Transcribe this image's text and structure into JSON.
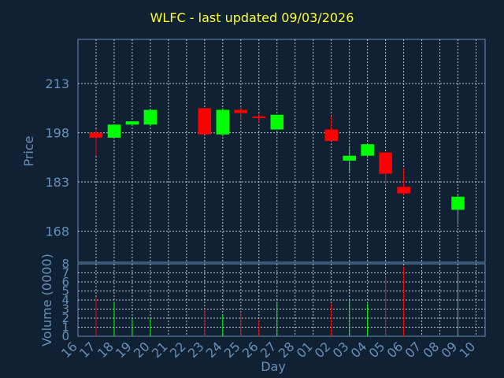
{
  "title": "WLFC - last updated 09/03/2026",
  "chart_data": {
    "type": "candlestick",
    "title": "WLFC - last updated 09/03/2026",
    "xlabel": "Day",
    "ylabel": "Price",
    "volume_label": "Volume (0000)",
    "x_ticks": [
      "16",
      "17",
      "18",
      "19",
      "20",
      "21",
      "22",
      "23",
      "24",
      "25",
      "26",
      "27",
      "28",
      "01",
      "02",
      "03",
      "04",
      "05",
      "06",
      "07",
      "08",
      "09",
      "10"
    ],
    "price_ticks": [
      168,
      183,
      198,
      213
    ],
    "price_range": [
      158.5,
      226.5
    ],
    "volume_ticks": [
      0,
      1,
      2,
      3,
      4,
      5,
      6,
      7,
      8
    ],
    "volume_range": [
      0,
      8
    ],
    "up_color": "#00ff00",
    "down_color": "#ff0000",
    "grid": true,
    "candles": [
      {
        "day": "17",
        "open": 198,
        "close": 196.5,
        "high": 199,
        "low": 191,
        "volume": 4.3
      },
      {
        "day": "18",
        "open": 196.5,
        "close": 200.5,
        "high": 200.5,
        "low": 196.5,
        "volume": 3.8
      },
      {
        "day": "19",
        "open": 200.5,
        "close": 201.5,
        "high": 201.5,
        "low": 200,
        "volume": 2.0
      },
      {
        "day": "20",
        "open": 200.5,
        "close": 205,
        "high": 205,
        "low": 200,
        "volume": 2.0
      },
      {
        "day": "23",
        "open": 205.5,
        "close": 197.5,
        "high": 205.5,
        "low": 197.5,
        "volume": 3.0
      },
      {
        "day": "24",
        "open": 197.5,
        "close": 205,
        "high": 205.5,
        "low": 197,
        "volume": 2.4
      },
      {
        "day": "25",
        "open": 205,
        "close": 204,
        "high": 206,
        "low": 202,
        "volume": 2.7
      },
      {
        "day": "26",
        "open": 203,
        "close": 202.5,
        "high": 204,
        "low": 201,
        "volume": 1.8
      },
      {
        "day": "27",
        "open": 199,
        "close": 203.5,
        "high": 203.5,
        "low": 199,
        "volume": 3.8
      },
      {
        "day": "02",
        "open": 199,
        "close": 195.5,
        "high": 203,
        "low": 195.5,
        "volume": 3.6
      },
      {
        "day": "03",
        "open": 189.5,
        "close": 191,
        "high": 194,
        "low": 186,
        "volume": 4.0
      },
      {
        "day": "04",
        "open": 191,
        "close": 194.5,
        "high": 194.5,
        "low": 191,
        "volume": 3.6
      },
      {
        "day": "05",
        "open": 192,
        "close": 185.5,
        "high": 192,
        "low": 182,
        "volume": 6.7
      },
      {
        "day": "06",
        "open": 181.5,
        "close": 179.5,
        "high": 187,
        "low": 179,
        "volume": 7.7
      },
      {
        "day": "09",
        "open": 174.5,
        "close": 178.5,
        "high": 179,
        "low": 170,
        "volume": 7.0
      }
    ]
  }
}
